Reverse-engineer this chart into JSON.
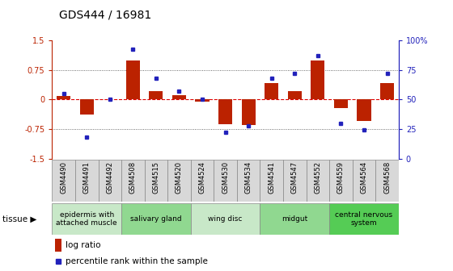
{
  "title": "GDS444 / 16981",
  "samples": [
    "GSM4490",
    "GSM4491",
    "GSM4492",
    "GSM4508",
    "GSM4515",
    "GSM4520",
    "GSM4524",
    "GSM4530",
    "GSM4534",
    "GSM4541",
    "GSM4547",
    "GSM4552",
    "GSM4559",
    "GSM4564",
    "GSM4568"
  ],
  "log_ratio": [
    0.1,
    -0.38,
    0.0,
    1.0,
    0.22,
    0.12,
    -0.05,
    -0.62,
    -0.65,
    0.42,
    0.22,
    1.0,
    -0.22,
    -0.55,
    0.42
  ],
  "percentile": [
    55,
    18,
    50,
    93,
    68,
    57,
    50,
    22,
    28,
    68,
    72,
    87,
    30,
    24,
    72
  ],
  "tissue_groups": [
    {
      "label": "epidermis with\nattached muscle",
      "start": 0,
      "end": 3,
      "color": "#c8e8c8"
    },
    {
      "label": "salivary gland",
      "start": 3,
      "end": 6,
      "color": "#90d890"
    },
    {
      "label": "wing disc",
      "start": 6,
      "end": 9,
      "color": "#c8e8c8"
    },
    {
      "label": "midgut",
      "start": 9,
      "end": 12,
      "color": "#90d890"
    },
    {
      "label": "central nervous\nsystem",
      "start": 12,
      "end": 15,
      "color": "#55cc55"
    }
  ],
  "ylim": [
    -1.5,
    1.5
  ],
  "yticks_left": [
    -1.5,
    -0.75,
    0.0,
    0.75,
    1.5
  ],
  "yticks_right": [
    0,
    25,
    50,
    75,
    100
  ],
  "bar_color": "#bb2200",
  "dot_color": "#2222bb",
  "hline_color": "#dd0000",
  "bg_color": "#ffffff",
  "sample_box_color": "#d8d8d8",
  "border_color": "#888888"
}
